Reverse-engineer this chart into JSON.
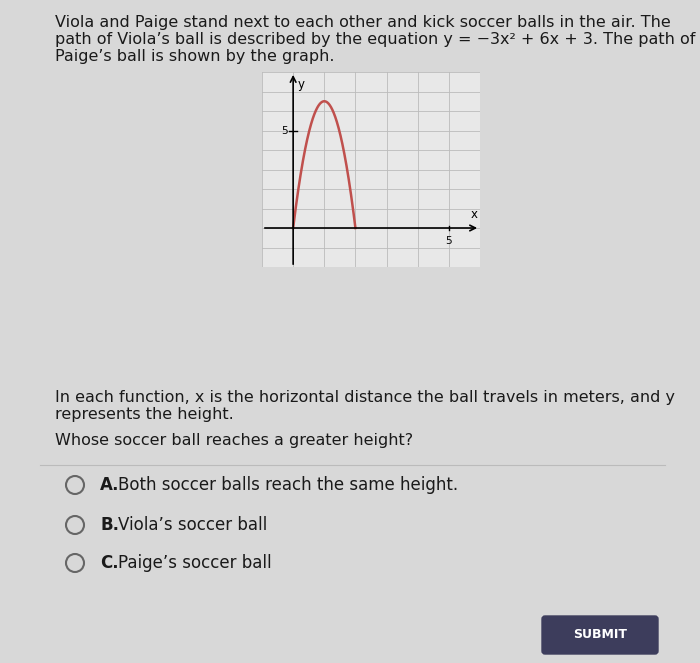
{
  "title_text": "Viola and Paige stand next to each other and kick soccer balls in the air. The\npath of Viola’s ball is described by the equation y = −3x² + 6x + 3. The path of\nPaige’s ball is shown by the graph.",
  "paragraph2": "In each function, x is the horizontal distance the ball travels in meters, and y\nrepresents the height.",
  "question": "Whose soccer ball reaches a greater height?",
  "options": [
    "A.  Both soccer balls reach the same height.",
    "B.  Viola’s soccer ball",
    "C.  Paige’s soccer ball"
  ],
  "submit_label": "SUBMIT",
  "graph": {
    "xlim": [
      -1,
      6
    ],
    "ylim": [
      -2,
      8
    ],
    "curve_color": "#c0504d",
    "peak_x": 1.0,
    "peak_y": 6.5,
    "curve_x_start": 0.0,
    "curve_x_end": 2.0,
    "bg_color": "#e8e8e8",
    "grid_color": "#bbbbbb",
    "grid_major_color": "#aaaaaa"
  },
  "bg_color": "#d8d8d8",
  "text_color": "#1a1a1a",
  "font_size_body": 11.5,
  "font_size_option": 12
}
